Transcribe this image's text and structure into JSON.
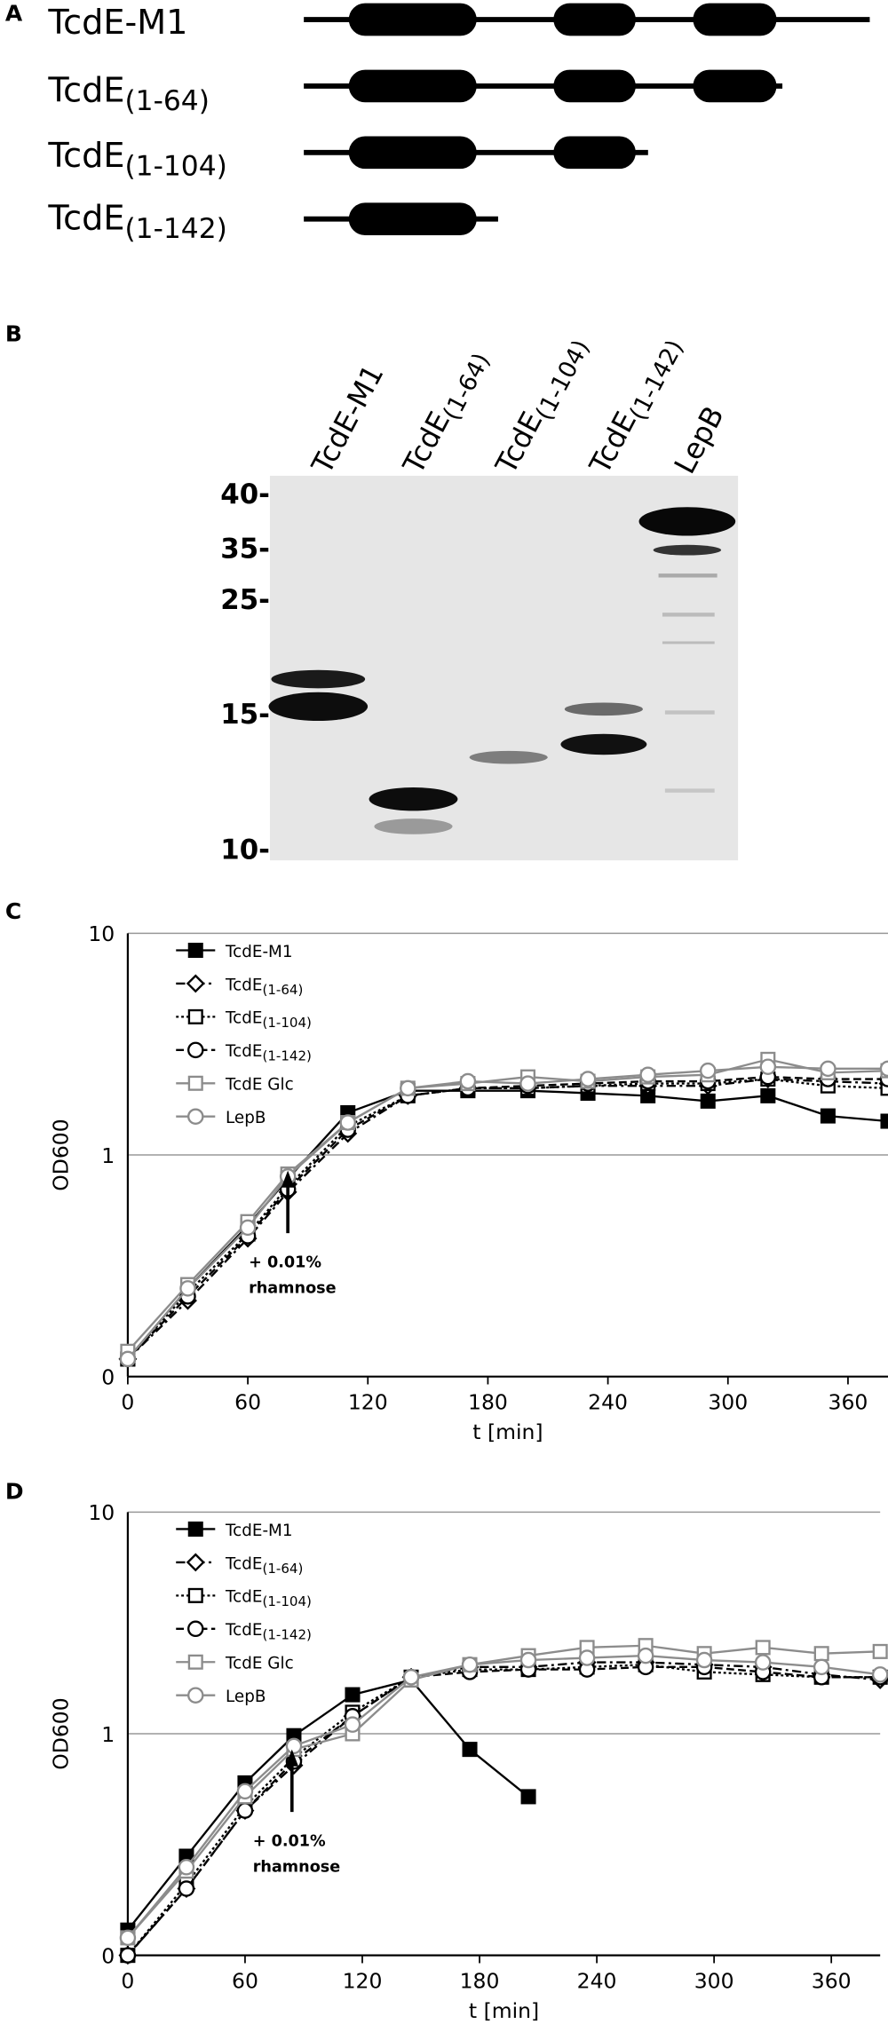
{
  "panels": [
    "A",
    "B",
    "C",
    "D"
  ],
  "constructs": [
    "TcdE-M1",
    "TcdE(1-64)",
    "TcdE(1-104)",
    "TcdE(1-142)"
  ],
  "blot": {
    "lanes": [
      "TcdE-M1",
      "TcdE(1-64)",
      "TcdE(1-104)",
      "TcdE(1-142)",
      "LepB"
    ],
    "markers": [
      "40-",
      "35-",
      "25-",
      "15-",
      "10-"
    ]
  },
  "chart_data": [
    {
      "type": "line",
      "x_label": "t [min]",
      "y_label": "OD600",
      "log_y": true,
      "grid": true,
      "x": [
        0,
        30,
        60,
        80,
        110,
        140,
        170,
        200,
        230,
        260,
        290,
        320,
        350,
        380
      ],
      "xlim": [
        0,
        380
      ],
      "xticks": [
        0,
        60,
        120,
        180,
        240,
        300,
        360
      ],
      "ylim": [
        0.1,
        10
      ],
      "yticks": [
        {
          "value": 0.1,
          "label": "0"
        },
        1,
        10
      ],
      "annotation": {
        "x": 80,
        "lines": [
          "+ 0.01%",
          "rhamnose"
        ]
      },
      "series": [
        {
          "name": "TcdE-M1",
          "color": "#000000",
          "marker": "square-filled",
          "dash": "solid",
          "values": [
            0.12,
            0.25,
            0.48,
            0.78,
            1.55,
            1.95,
            1.95,
            1.95,
            1.9,
            1.85,
            1.75,
            1.85,
            1.5,
            1.42
          ]
        },
        {
          "name": "TcdE(1-64)",
          "color": "#000000",
          "marker": "diamond",
          "dash": "dash-dot",
          "values": [
            0.12,
            0.22,
            0.42,
            0.68,
            1.25,
            1.85,
            2.0,
            2.0,
            2.05,
            2.05,
            2.05,
            2.2,
            2.15,
            2.1
          ]
        },
        {
          "name": "TcdE(1-104)",
          "color": "#000000",
          "marker": "square",
          "dash": "dotted",
          "values": [
            0.12,
            0.24,
            0.44,
            0.72,
            1.35,
            1.85,
            2.0,
            2.0,
            2.05,
            2.1,
            2.1,
            2.2,
            2.05,
            2.0
          ]
        },
        {
          "name": "TcdE(1-142)",
          "color": "#000000",
          "marker": "circle",
          "dash": "dashed",
          "values": [
            0.12,
            0.23,
            0.43,
            0.7,
            1.3,
            1.85,
            2.0,
            2.05,
            2.1,
            2.15,
            2.15,
            2.25,
            2.2,
            2.2
          ]
        },
        {
          "name": "TcdE Glc",
          "color": "#8c8c8c",
          "marker": "square",
          "dash": "solid",
          "values": [
            0.13,
            0.26,
            0.5,
            0.82,
            1.4,
            2.0,
            2.1,
            2.25,
            2.15,
            2.25,
            2.3,
            2.7,
            2.35,
            2.4
          ]
        },
        {
          "name": "LepB",
          "color": "#8c8c8c",
          "marker": "circle",
          "dash": "solid",
          "values": [
            0.12,
            0.25,
            0.47,
            0.8,
            1.4,
            2.0,
            2.15,
            2.1,
            2.2,
            2.3,
            2.4,
            2.5,
            2.45,
            2.45
          ]
        }
      ]
    },
    {
      "type": "line",
      "x_label": "t [min]",
      "y_label": "OD600",
      "log_y": true,
      "grid": true,
      "x": [
        0,
        30,
        60,
        85,
        115,
        145,
        175,
        205,
        235,
        265,
        295,
        325,
        355,
        385
      ],
      "xlim": [
        0,
        385
      ],
      "xticks": [
        0,
        60,
        120,
        180,
        240,
        300,
        360
      ],
      "ylim": [
        0.1,
        10
      ],
      "yticks": [
        {
          "value": 0.1,
          "label": "0"
        },
        1,
        10
      ],
      "annotation": {
        "x": 84,
        "lines": [
          "+ 0.01%",
          "rhamnose"
        ]
      },
      "series": [
        {
          "name": "TcdE-M1",
          "color": "#000000",
          "marker": "square-filled",
          "dash": "solid",
          "values": [
            0.13,
            0.28,
            0.6,
            0.98,
            1.5,
            1.75,
            0.85,
            0.52,
            null,
            null,
            null,
            null,
            null,
            null
          ]
        },
        {
          "name": "TcdE(1-64)",
          "color": "#000000",
          "marker": "diamond",
          "dash": "dash-dot",
          "values": [
            0.1,
            0.2,
            0.45,
            0.72,
            1.2,
            1.8,
            2.0,
            2.0,
            2.1,
            2.1,
            2.05,
            2.0,
            1.85,
            1.75
          ]
        },
        {
          "name": "TcdE(1-104)",
          "color": "#000000",
          "marker": "square",
          "dash": "dotted",
          "values": [
            0.1,
            0.21,
            0.47,
            0.78,
            1.25,
            1.8,
            1.95,
            1.95,
            2.0,
            2.05,
            1.9,
            1.85,
            1.8,
            1.8
          ]
        },
        {
          "name": "TcdE(1-142)",
          "color": "#000000",
          "marker": "circle",
          "dash": "dashed",
          "values": [
            0.1,
            0.2,
            0.45,
            0.75,
            1.2,
            1.8,
            1.9,
            1.95,
            1.95,
            2.0,
            2.0,
            1.9,
            1.8,
            1.8
          ]
        },
        {
          "name": "TcdE Glc",
          "color": "#8c8c8c",
          "marker": "square",
          "dash": "solid",
          "values": [
            0.12,
            0.24,
            0.52,
            0.85,
            1.0,
            1.75,
            2.05,
            2.25,
            2.45,
            2.5,
            2.3,
            2.45,
            2.3,
            2.35
          ]
        },
        {
          "name": "LepB",
          "color": "#8c8c8c",
          "marker": "circle",
          "dash": "solid",
          "values": [
            0.12,
            0.25,
            0.55,
            0.88,
            1.1,
            1.8,
            2.05,
            2.15,
            2.2,
            2.25,
            2.15,
            2.1,
            2.0,
            1.85
          ]
        }
      ]
    }
  ]
}
